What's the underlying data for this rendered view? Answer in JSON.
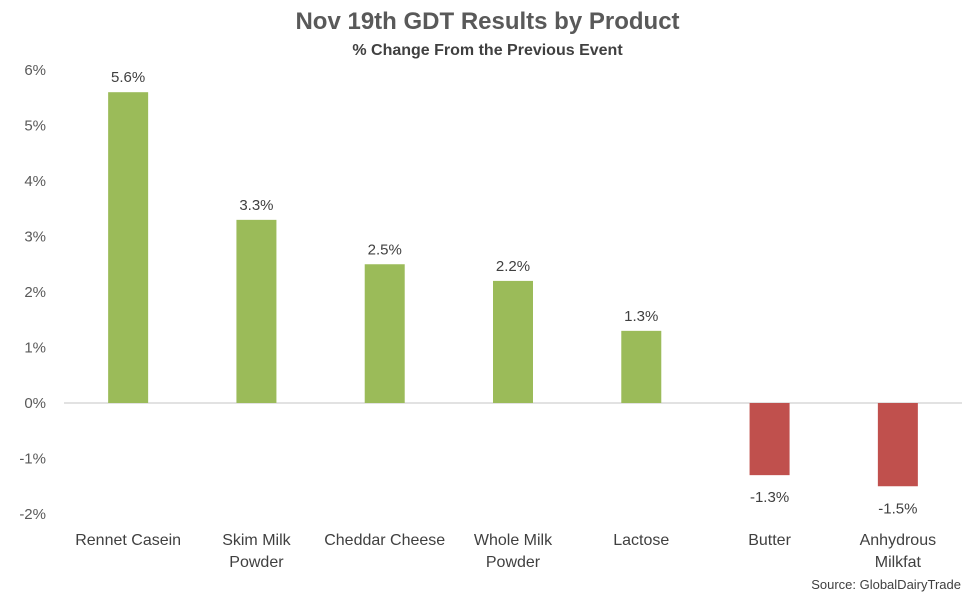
{
  "chart_data": {
    "type": "bar",
    "title": "Nov 19th GDT Results by Product",
    "subtitle": "% Change From the Previous Event",
    "source": "Source: GlobalDairyTrade",
    "categories": [
      [
        "Rennet Casein"
      ],
      [
        "Skim Milk",
        "Powder"
      ],
      [
        "Cheddar Cheese"
      ],
      [
        "Whole Milk",
        "Powder"
      ],
      [
        "Lactose"
      ],
      [
        "Butter"
      ],
      [
        "Anhydrous",
        "Milkfat"
      ]
    ],
    "values": [
      5.6,
      3.3,
      2.5,
      2.2,
      1.3,
      -1.3,
      -1.5
    ],
    "data_labels": [
      "5.6%",
      "3.3%",
      "2.5%",
      "2.2%",
      "1.3%",
      "-1.3%",
      "-1.5%"
    ],
    "y_ticks": [
      6,
      5,
      4,
      3,
      2,
      1,
      0,
      -1,
      -2
    ],
    "y_tick_labels": [
      "6%",
      "5%",
      "4%",
      "3%",
      "2%",
      "1%",
      "0%",
      "-1%",
      "-2%"
    ],
    "ylim": [
      -2,
      6
    ],
    "grid": false,
    "colors": {
      "positive": "#9BBB59",
      "negative": "#C0504D",
      "axis": "#D9D9D9"
    }
  }
}
